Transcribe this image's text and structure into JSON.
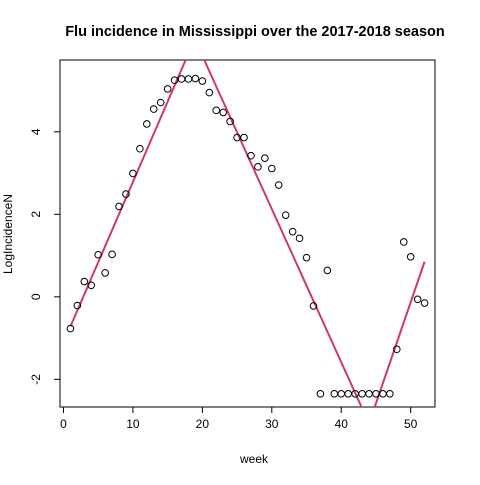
{
  "chart_data": {
    "type": "scatter",
    "title": "Flu incidence in Mississippi over the 2017-2018 season",
    "xlabel": "week",
    "ylabel": "LogIncidenceN",
    "xlim": [
      -0.5,
      53.5
    ],
    "ylim": [
      -2.67,
      5.74
    ],
    "x_ticks": [
      0,
      10,
      20,
      30,
      40,
      50
    ],
    "y_ticks": [
      -2,
      0,
      2,
      4
    ],
    "grid": false,
    "legend": "none",
    "series": [
      {
        "kind": "points",
        "x": [
          1,
          2,
          3,
          4,
          5,
          6,
          7,
          8,
          9,
          10,
          11,
          12,
          13,
          14,
          15,
          16,
          17,
          18,
          19,
          20,
          21,
          22,
          23,
          24,
          25,
          26,
          27,
          28,
          29,
          30,
          31,
          32,
          33,
          34,
          35,
          36,
          37,
          38,
          39,
          40,
          41,
          42,
          43,
          44,
          45,
          46,
          47,
          48,
          49,
          50,
          51,
          52
        ],
        "y": [
          -0.77,
          -0.21,
          0.37,
          0.28,
          1.02,
          0.58,
          1.03,
          2.19,
          2.49,
          2.99,
          3.59,
          4.19,
          4.55,
          4.71,
          5.04,
          5.25,
          5.28,
          5.28,
          5.29,
          5.23,
          4.95,
          4.52,
          4.47,
          4.25,
          3.86,
          3.86,
          3.42,
          3.15,
          3.36,
          3.11,
          2.71,
          1.98,
          1.58,
          1.42,
          0.95,
          -0.22,
          -2.35,
          0.64,
          -2.35,
          -2.35,
          -2.35,
          -2.35,
          -2.35,
          -2.35,
          -2.35,
          -2.35,
          -2.35,
          -1.27,
          1.33,
          0.97,
          -0.06,
          -0.15
        ]
      },
      {
        "kind": "line",
        "color": "#d03a5e",
        "x": [
          1,
          18.9,
          44,
          52
        ],
        "y": [
          -0.72,
          6.25,
          -3.07,
          0.85
        ]
      }
    ]
  }
}
